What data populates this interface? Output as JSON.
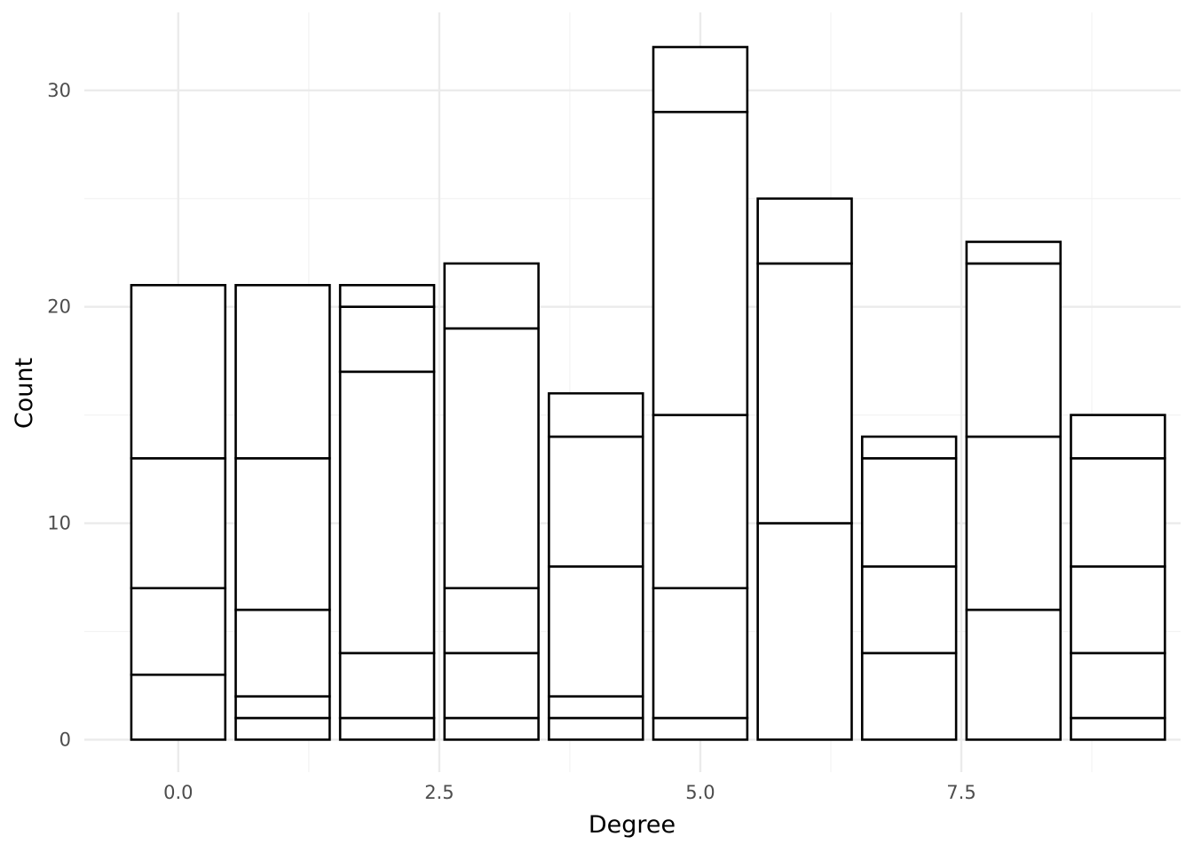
{
  "chart_data": {
    "type": "bar",
    "stacked": true,
    "xlabel": "Degree",
    "ylabel": "Count",
    "title": "",
    "x": [
      0,
      1,
      2,
      3,
      4,
      5,
      6,
      7,
      8,
      9
    ],
    "segment_boundaries": [
      [
        0,
        3,
        7,
        13,
        21
      ],
      [
        0,
        1,
        2,
        6,
        13,
        21
      ],
      [
        0,
        1,
        4,
        17,
        20,
        21
      ],
      [
        0,
        1,
        4,
        7,
        19,
        22
      ],
      [
        0,
        1,
        2,
        8,
        14,
        16
      ],
      [
        0,
        1,
        7,
        15,
        29,
        32
      ],
      [
        0,
        10,
        22,
        25
      ],
      [
        0,
        4,
        8,
        13,
        14
      ],
      [
        0,
        6,
        14,
        22,
        23
      ],
      [
        0,
        1,
        4,
        8,
        13,
        15
      ]
    ],
    "totals": [
      21,
      21,
      21,
      22,
      16,
      32,
      25,
      14,
      23,
      15
    ],
    "xlim": [
      -0.9,
      9.6
    ],
    "ylim": [
      -1.5,
      33.6
    ],
    "x_ticks": [
      0,
      2.5,
      5,
      7.5
    ],
    "x_tick_labels": [
      "0.0",
      "2.5",
      "5.0",
      "7.5"
    ],
    "y_ticks": [
      0,
      10,
      20,
      30
    ],
    "y_tick_labels": [
      "0",
      "10",
      "20",
      "30"
    ],
    "grid": true,
    "bar_fill": "#ffffff",
    "bar_stroke": "#000000",
    "grid_major_color": "#ebebeb",
    "grid_minor_color": "#f3f3f3"
  }
}
